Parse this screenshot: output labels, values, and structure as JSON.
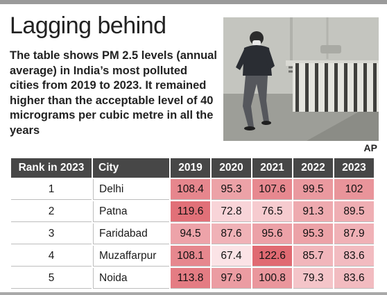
{
  "headline": "Lagging behind",
  "blurb": "The table shows PM 2.5 levels (annual average) in India’s most polluted cities from 2019 to 2023. It remained higher than the acceptable level of 40 micrograms per cubic metre in all the years",
  "photo_credit": "AP",
  "table": {
    "headers": [
      "Rank in 2023",
      "City",
      "2019",
      "2020",
      "2021",
      "2022",
      "2023"
    ],
    "rows": [
      {
        "rank": "1",
        "city": "Delhi",
        "values": [
          "108.4",
          "95.3",
          "107.6",
          "99.5",
          "102"
        ]
      },
      {
        "rank": "2",
        "city": "Patna",
        "values": [
          "119.6",
          "72.8",
          "76.5",
          "91.3",
          "89.5"
        ]
      },
      {
        "rank": "3",
        "city": "Faridabad",
        "values": [
          "94.5",
          "87.6",
          "95.6",
          "95.3",
          "87.9"
        ]
      },
      {
        "rank": "4",
        "city": "Muzaffarpur",
        "values": [
          "108.1",
          "67.4",
          "122.6",
          "85.7",
          "83.6"
        ]
      },
      {
        "rank": "5",
        "city": "Noida",
        "values": [
          "113.8",
          "97.9",
          "100.8",
          "79.3",
          "83.6"
        ]
      }
    ]
  },
  "colors": {
    "header_bg": "#474747",
    "heat_low": "#fbe3e6",
    "heat_high": "#e06a72"
  }
}
